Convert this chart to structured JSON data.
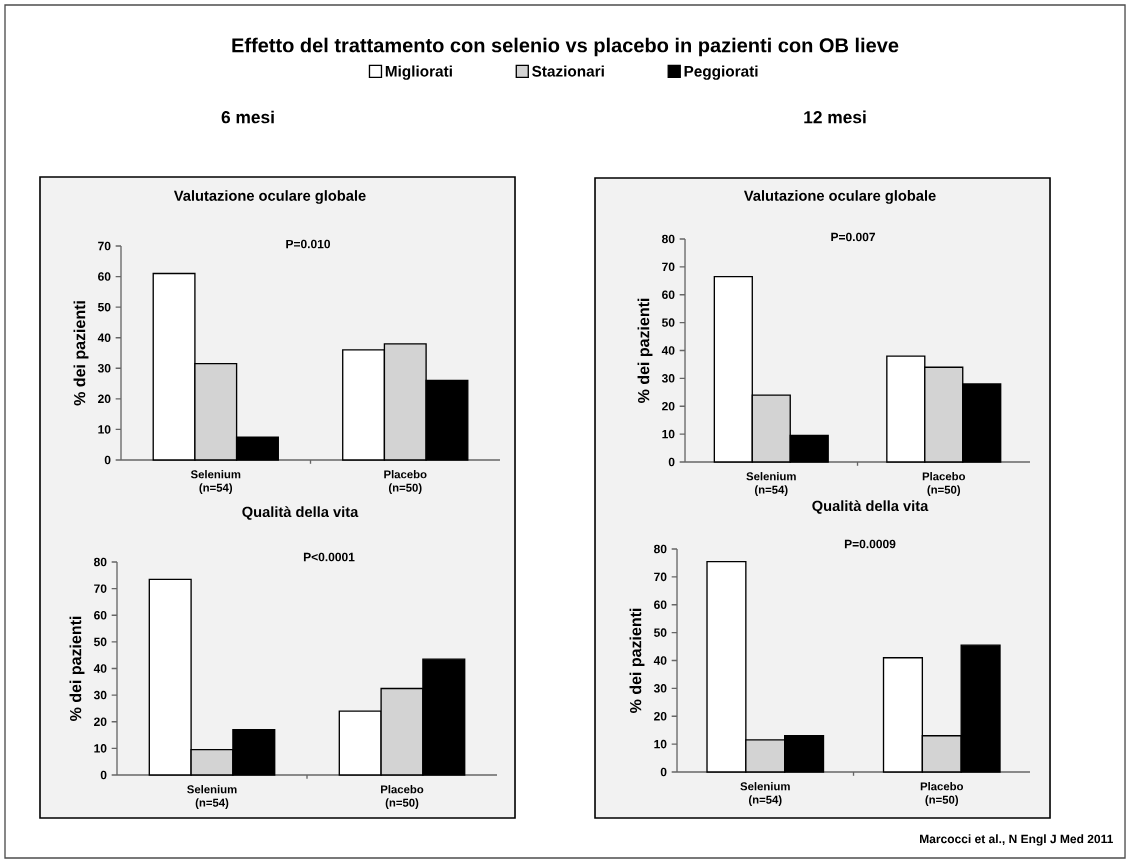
{
  "chart_data": [
    {
      "type": "bar",
      "title": "Valutazione oculare globale",
      "ylabel": "% dei pazienti",
      "categories": [
        "Selenium (n=54)",
        "Placebo (n=50)"
      ],
      "series": [
        {
          "name": "Migliorati",
          "color": "#ffffff",
          "values": [
            61,
            36
          ]
        },
        {
          "name": "Stazionari",
          "color": "#d3d3d3",
          "values": [
            31.5,
            38
          ]
        },
        {
          "name": "Peggiorati",
          "color": "#000000",
          "values": [
            7.5,
            26
          ]
        }
      ],
      "ylim": [
        0,
        70
      ],
      "yticks": [
        0,
        10,
        20,
        30,
        40,
        50,
        60,
        70
      ],
      "legend": "top",
      "annotations": [
        "Effetto del trattamento con selenio vs placebo in  pazienti con OB lieve",
        "6 mesi",
        "P=0.010"
      ]
    },
    {
      "type": "bar",
      "title": "Valutazione oculare globale",
      "ylabel": "% dei pazienti",
      "categories": [
        "Selenium (n=54)",
        "Placebo (n=50)"
      ],
      "series": [
        {
          "color": "#ffffff",
          "values": [
            66.5,
            38
          ]
        },
        {
          "color": "#d3d3d3",
          "values": [
            24,
            34
          ]
        },
        {
          "color": "#000000",
          "values": [
            9.5,
            28
          ]
        }
      ],
      "ylim": [
        0,
        80
      ],
      "yticks": [
        0,
        10,
        20,
        30,
        40,
        50,
        60,
        70,
        80
      ],
      "annotations": [
        "12 mesi",
        "P=0.007"
      ]
    },
    {
      "type": "bar",
      "title": "Qualità della vita",
      "ylabel": "% dei pazienti",
      "categories": [
        "Selenium (n=54)",
        "Placebo (n=50)"
      ],
      "series": [
        {
          "color": "#ffffff",
          "values": [
            73.5,
            24
          ]
        },
        {
          "color": "#d3d3d3",
          "values": [
            9.5,
            32.5
          ]
        },
        {
          "color": "#000000",
          "values": [
            17,
            43.5
          ]
        }
      ],
      "ylim": [
        0,
        80
      ],
      "yticks": [
        0,
        10,
        20,
        30,
        40,
        50,
        60,
        70,
        80
      ],
      "annotations": [
        "P<0.0001"
      ]
    },
    {
      "type": "bar",
      "title": "Qualità della vita",
      "ylabel": "% dei pazienti",
      "categories": [
        "Selenium (n=54)",
        "Placebo (n=50)"
      ],
      "series": [
        {
          "color": "#ffffff",
          "values": [
            75.5,
            41
          ]
        },
        {
          "color": "#d3d3d3",
          "values": [
            11.5,
            13
          ]
        },
        {
          "color": "#000000",
          "values": [
            13,
            45.5
          ]
        }
      ],
      "ylim": [
        0,
        80
      ],
      "yticks": [
        0,
        10,
        20,
        30,
        40,
        50,
        60,
        70,
        80
      ],
      "annotations": [
        "P=0.0009",
        "Marcocci et al., N Engl J Med 2011"
      ]
    }
  ]
}
